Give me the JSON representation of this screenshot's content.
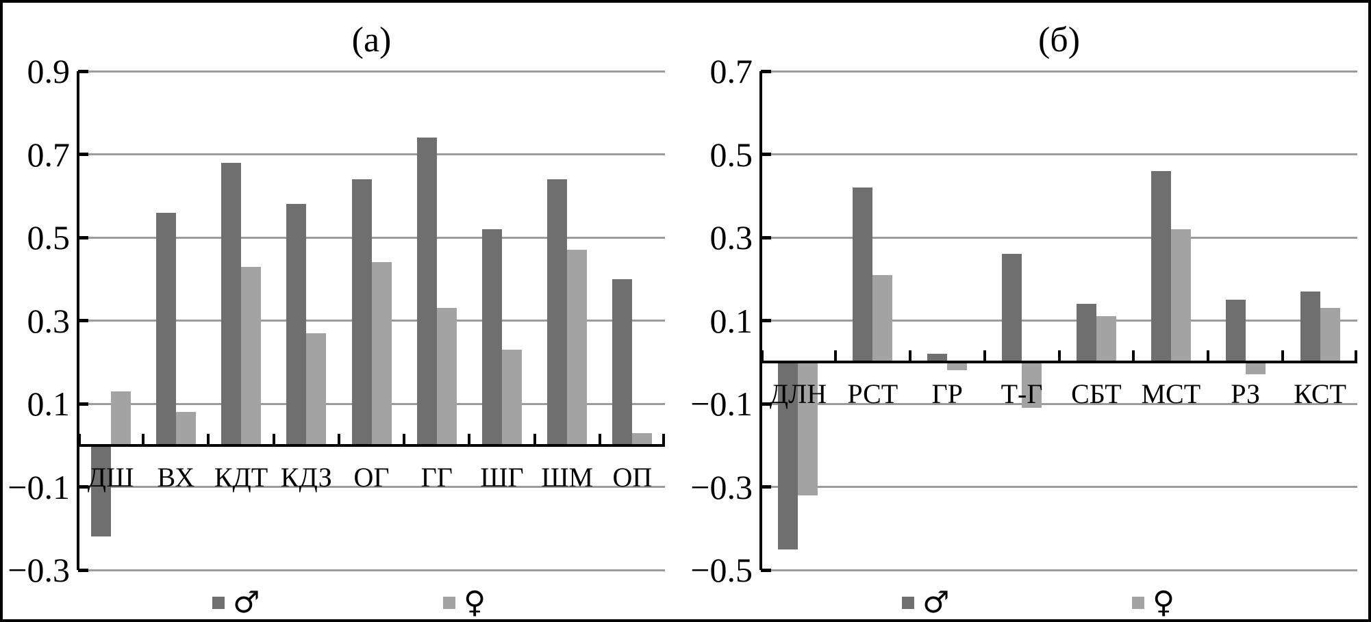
{
  "page": {
    "background": "#ffffff",
    "border_color": "#000000"
  },
  "colors": {
    "male_bar": "#6f6f6f",
    "female_bar": "#a3a3a3",
    "gridline": "#9c9c9c",
    "axis": "#000000",
    "text": "#000000"
  },
  "legend": {
    "male_symbol": "♂",
    "female_symbol": "♀"
  },
  "chart_data": [
    {
      "type": "bar",
      "title": "(a)",
      "categories": [
        "ДШ",
        "ВХ",
        "КДТ",
        "КДЗ",
        "ОГ",
        "ГГ",
        "ШГ",
        "ШМ",
        "ОП"
      ],
      "series": [
        {
          "name": "♂",
          "values": [
            -0.22,
            0.56,
            0.68,
            0.58,
            0.64,
            0.74,
            0.52,
            0.64,
            0.4
          ]
        },
        {
          "name": "♀",
          "values": [
            0.13,
            0.08,
            0.43,
            0.27,
            0.44,
            0.33,
            0.23,
            0.47,
            0.03
          ]
        }
      ],
      "ylim": [
        -0.3,
        0.9
      ],
      "yticks": [
        0.9,
        0.7,
        0.5,
        0.3,
        0.1,
        -0.1,
        -0.3
      ],
      "ytick_labels": [
        "0.9",
        "0.7",
        "0.5",
        "0.3",
        "0.1",
        "−0.1",
        "−0.3"
      ],
      "xlabel": "",
      "ylabel": "",
      "grid": true,
      "zero_baseline": true,
      "legend_position": "bottom"
    },
    {
      "type": "bar",
      "title": "(б)",
      "categories": [
        "ДЛН",
        "РСТ",
        "ГР",
        "Т-Г",
        "СБТ",
        "МСТ",
        "РЗ",
        "КСТ"
      ],
      "series": [
        {
          "name": "♂",
          "values": [
            -0.45,
            0.42,
            0.02,
            0.26,
            0.14,
            0.46,
            0.15,
            0.17
          ]
        },
        {
          "name": "♀",
          "values": [
            -0.32,
            0.21,
            -0.02,
            -0.11,
            0.11,
            0.32,
            -0.03,
            0.13
          ]
        }
      ],
      "ylim": [
        -0.5,
        0.7
      ],
      "yticks": [
        0.7,
        0.5,
        0.3,
        0.1,
        -0.1,
        -0.3,
        -0.5
      ],
      "ytick_labels": [
        "0.7",
        "0.5",
        "0.3",
        "0.1",
        "−0.1",
        "−0.3",
        "−0.5"
      ],
      "xlabel": "",
      "ylabel": "",
      "grid": true,
      "zero_baseline": true,
      "legend_position": "bottom"
    }
  ]
}
